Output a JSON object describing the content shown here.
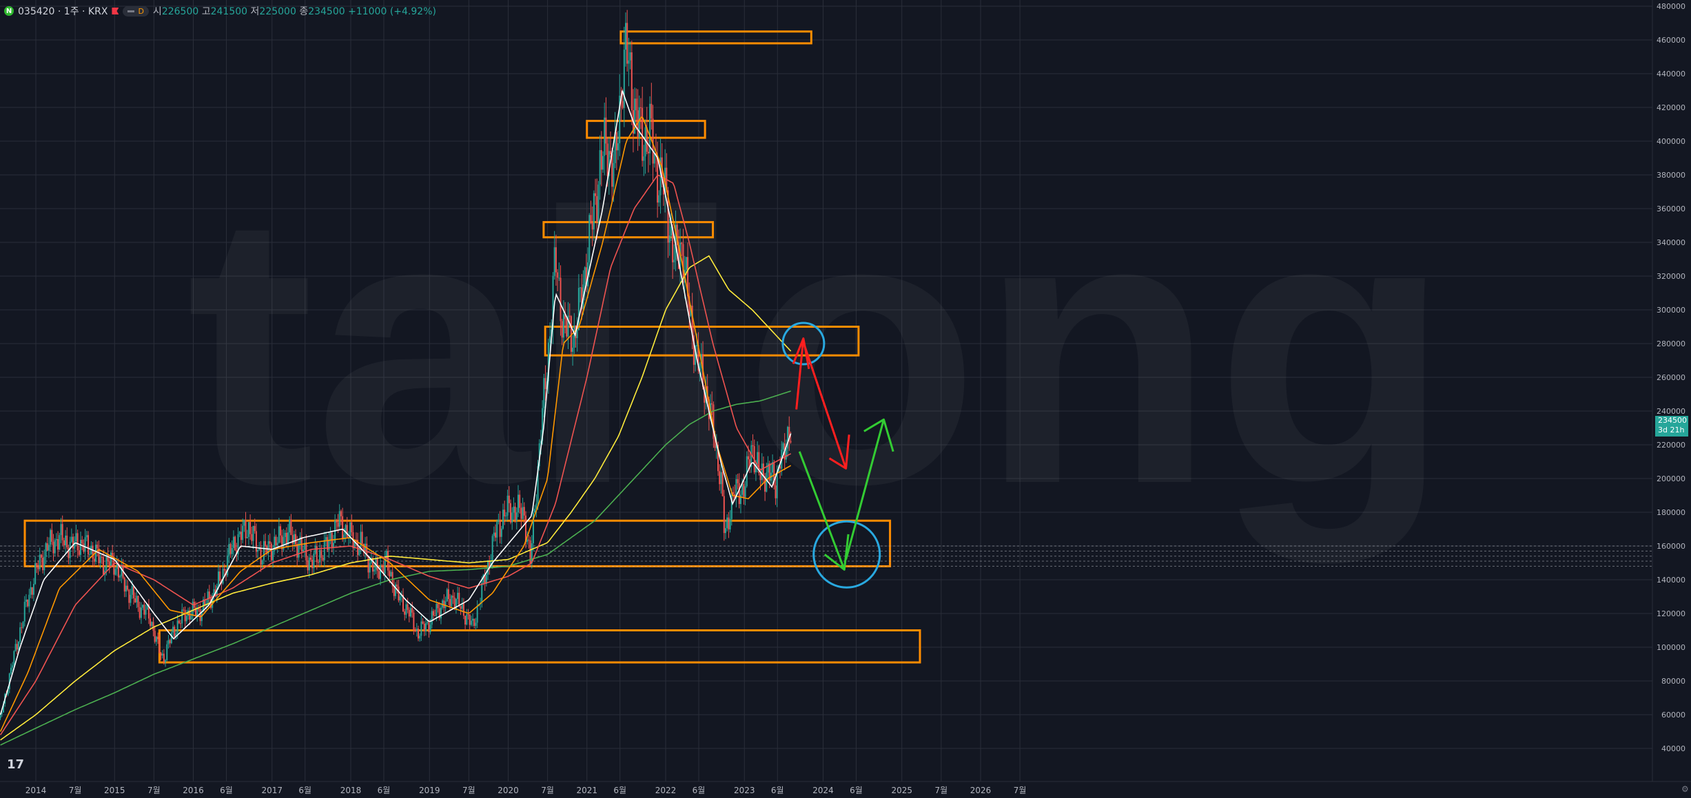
{
  "header": {
    "symbol": "035420 · 1주 · KRX",
    "badge_letter": "N",
    "interval_pill": "D",
    "open_label": "시",
    "open_value": "226500",
    "high_label": "고",
    "high_value": "241500",
    "low_label": "저",
    "low_value": "225000",
    "close_label": "종",
    "close_value": "234500",
    "change_value": "+11000 (+4.92%)"
  },
  "last_price": {
    "value": "234500",
    "countdown": "3d 21h"
  },
  "watermark": "tailong",
  "tv_logo": "17",
  "colors": {
    "background": "#131722",
    "grid": "#2a2e39",
    "up": "#26a69a",
    "down": "#ef5350",
    "ma_white": "#ffffff",
    "ma_orange": "#ff9800",
    "ma_red": "#ef5350",
    "ma_yellow": "#ffeb3b",
    "ma_green": "#4caf50",
    "zone": "#ff8c00",
    "circle": "#29a9e0",
    "arrow_red": "#ff1f1f",
    "arrow_green": "#33cc33"
  },
  "chart_data": {
    "type": "line",
    "ylim": [
      20000,
      480000
    ],
    "y_ticks": [
      "40000",
      "60000",
      "80000",
      "100000",
      "120000",
      "140000",
      "160000",
      "180000",
      "200000",
      "220000",
      "240000",
      "260000",
      "280000",
      "300000",
      "320000",
      "340000",
      "360000",
      "380000",
      "400000",
      "420000",
      "440000",
      "460000",
      "480000"
    ],
    "x_ticks": [
      {
        "t": 2014.0,
        "label": "2014"
      },
      {
        "t": 2014.5,
        "label": "7월"
      },
      {
        "t": 2015.0,
        "label": "2015"
      },
      {
        "t": 2015.5,
        "label": "7월"
      },
      {
        "t": 2016.0,
        "label": "2016"
      },
      {
        "t": 2016.42,
        "label": "6월"
      },
      {
        "t": 2017.0,
        "label": "2017"
      },
      {
        "t": 2017.42,
        "label": "6월"
      },
      {
        "t": 2018.0,
        "label": "2018"
      },
      {
        "t": 2018.42,
        "label": "6월"
      },
      {
        "t": 2019.0,
        "label": "2019"
      },
      {
        "t": 2019.5,
        "label": "7월"
      },
      {
        "t": 2020.0,
        "label": "2020"
      },
      {
        "t": 2020.5,
        "label": "7월"
      },
      {
        "t": 2021.0,
        "label": "2021"
      },
      {
        "t": 2021.42,
        "label": "6월"
      },
      {
        "t": 2022.0,
        "label": "2022"
      },
      {
        "t": 2022.42,
        "label": "6월"
      },
      {
        "t": 2023.0,
        "label": "2023"
      },
      {
        "t": 2023.42,
        "label": "6월"
      },
      {
        "t": 2024.0,
        "label": "2024"
      },
      {
        "t": 2024.42,
        "label": "6월"
      },
      {
        "t": 2025.0,
        "label": "2025"
      },
      {
        "t": 2025.5,
        "label": "7월"
      },
      {
        "t": 2026.0,
        "label": "2026"
      },
      {
        "t": 2026.5,
        "label": "7월"
      }
    ],
    "price": {
      "t": [
        2013.55,
        2013.7,
        2013.85,
        2014.0,
        2014.15,
        2014.3,
        2014.45,
        2014.55,
        2014.7,
        2014.85,
        2015.0,
        2015.15,
        2015.3,
        2015.45,
        2015.55,
        2015.62,
        2015.75,
        2015.9,
        2016.1,
        2016.3,
        2016.5,
        2016.7,
        2016.85,
        2017.0,
        2017.2,
        2017.35,
        2017.5,
        2017.7,
        2017.85,
        2018.0,
        2018.15,
        2018.3,
        2018.45,
        2018.6,
        2018.75,
        2018.85,
        2019.0,
        2019.15,
        2019.3,
        2019.45,
        2019.55,
        2019.7,
        2019.85,
        2020.0,
        2020.2,
        2020.28,
        2020.4,
        2020.5,
        2020.6,
        2020.7,
        2020.85,
        2021.0,
        2021.15,
        2021.25,
        2021.35,
        2021.45,
        2021.5,
        2021.6,
        2021.7,
        2021.8,
        2021.9,
        2022.0,
        2022.1,
        2022.2,
        2022.3,
        2022.4,
        2022.5,
        2022.6,
        2022.7,
        2022.75,
        2022.85,
        2023.0,
        2023.1,
        2023.2,
        2023.3,
        2023.4,
        2023.45,
        2023.5,
        2023.55,
        2023.6
      ],
      "v": [
        58000,
        90000,
        120000,
        145000,
        160000,
        165000,
        160000,
        162000,
        158000,
        150000,
        150000,
        135000,
        125000,
        118000,
        100000,
        93000,
        110000,
        120000,
        122000,
        135000,
        160000,
        172000,
        155000,
        160000,
        168000,
        160000,
        150000,
        160000,
        175000,
        165000,
        160000,
        145000,
        150000,
        130000,
        120000,
        108000,
        115000,
        125000,
        130000,
        120000,
        112000,
        140000,
        170000,
        182000,
        180000,
        150000,
        220000,
        270000,
        330000,
        290000,
        285000,
        330000,
        380000,
        400000,
        380000,
        440000,
        455000,
        420000,
        400000,
        405000,
        380000,
        370000,
        330000,
        340000,
        300000,
        270000,
        255000,
        230000,
        200000,
        165000,
        190000,
        195000,
        220000,
        200000,
        205000,
        195000,
        215000,
        210000,
        225000,
        234500
      ]
    },
    "ma_white_t": [
      2013.55,
      2013.8,
      2014.1,
      2014.5,
      2015.0,
      2015.5,
      2015.75,
      2016.2,
      2016.6,
      2017.0,
      2017.4,
      2017.9,
      2018.3,
      2018.7,
      2019.0,
      2019.5,
      2019.8,
      2020.3,
      2020.45,
      2020.6,
      2020.85,
      2021.2,
      2021.45,
      2021.6,
      2021.9,
      2022.1,
      2022.4,
      2022.7,
      2022.85,
      2023.1,
      2023.35,
      2023.6
    ],
    "ma_white_v": [
      60000,
      100000,
      140000,
      162000,
      152000,
      120000,
      105000,
      125000,
      160000,
      158000,
      165000,
      170000,
      150000,
      128000,
      115000,
      128000,
      150000,
      178000,
      230000,
      310000,
      285000,
      360000,
      430000,
      410000,
      390000,
      345000,
      270000,
      210000,
      185000,
      210000,
      195000,
      228000
    ],
    "ma_orange_t": [
      2013.55,
      2013.9,
      2014.3,
      2014.8,
      2015.3,
      2015.7,
      2016.1,
      2016.6,
      2017.0,
      2017.5,
      2018.0,
      2018.5,
      2019.0,
      2019.5,
      2019.8,
      2020.2,
      2020.5,
      2020.7,
      2020.9,
      2021.2,
      2021.5,
      2021.7,
      2021.95,
      2022.2,
      2022.45,
      2022.65,
      2022.85,
      2023.05,
      2023.3,
      2023.6
    ],
    "ma_orange_v": [
      50000,
      85000,
      135000,
      158000,
      145000,
      122000,
      118000,
      145000,
      158000,
      162000,
      165000,
      150000,
      128000,
      120000,
      132000,
      160000,
      200000,
      280000,
      290000,
      340000,
      400000,
      415000,
      385000,
      330000,
      270000,
      220000,
      190000,
      188000,
      200000,
      208000
    ],
    "ma_red_t": [
      2013.55,
      2014.0,
      2014.5,
      2015.0,
      2015.5,
      2016.0,
      2016.5,
      2017.0,
      2017.5,
      2018.0,
      2018.5,
      2019.0,
      2019.5,
      2020.0,
      2020.3,
      2020.6,
      2021.0,
      2021.3,
      2021.6,
      2021.9,
      2022.1,
      2022.3,
      2022.6,
      2022.9,
      2023.2,
      2023.6
    ],
    "ma_red_v": [
      48000,
      80000,
      125000,
      150000,
      140000,
      125000,
      135000,
      150000,
      158000,
      160000,
      152000,
      142000,
      135000,
      142000,
      150000,
      185000,
      260000,
      325000,
      360000,
      380000,
      375000,
      340000,
      280000,
      230000,
      205000,
      215000
    ],
    "ma_yellow_t": [
      2013.55,
      2014.0,
      2014.5,
      2015.0,
      2015.5,
      2016.0,
      2016.5,
      2017.0,
      2017.5,
      2018.0,
      2018.5,
      2019.0,
      2019.5,
      2020.0,
      2020.5,
      2020.8,
      2021.1,
      2021.4,
      2021.7,
      2022.0,
      2022.3,
      2022.55,
      2022.8,
      2023.1,
      2023.4,
      2023.6
    ],
    "ma_yellow_v": [
      45000,
      60000,
      80000,
      98000,
      112000,
      122000,
      132000,
      138000,
      143000,
      150000,
      154000,
      152000,
      150000,
      152000,
      162000,
      180000,
      200000,
      225000,
      260000,
      300000,
      325000,
      332000,
      312000,
      300000,
      285000,
      275000
    ],
    "ma_green_t": [
      2013.55,
      2014.0,
      2014.5,
      2015.0,
      2015.5,
      2016.0,
      2016.5,
      2017.0,
      2017.5,
      2018.0,
      2018.5,
      2019.0,
      2019.5,
      2020.0,
      2020.5,
      2020.8,
      2021.1,
      2021.4,
      2021.7,
      2022.0,
      2022.3,
      2022.6,
      2022.9,
      2023.2,
      2023.6
    ],
    "ma_green_v": [
      42000,
      52000,
      63000,
      73000,
      84000,
      93000,
      102000,
      112000,
      122000,
      132000,
      140000,
      145000,
      146000,
      148000,
      155000,
      165000,
      175000,
      190000,
      205000,
      220000,
      232000,
      240000,
      244000,
      246000,
      252000
    ]
  }
}
